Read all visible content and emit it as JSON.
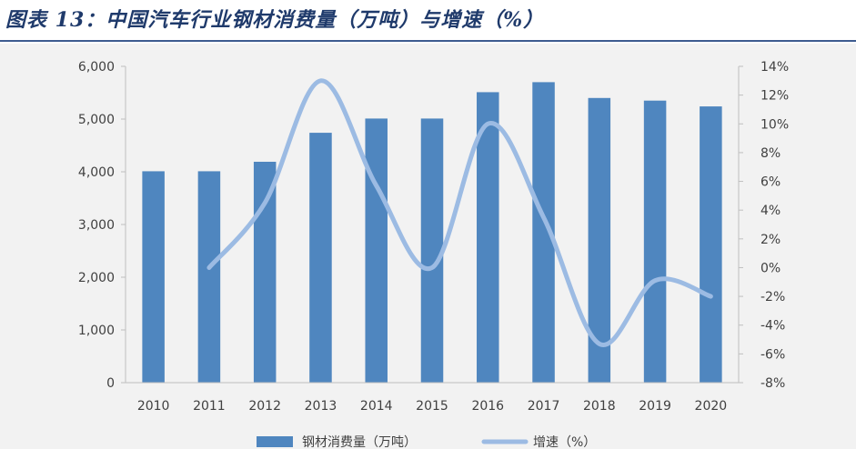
{
  "title": "图表 13：中国汽车行业钢材消费量（万吨）与增速（%）",
  "chart_data": {
    "type": "bar",
    "categories": [
      "2010",
      "2011",
      "2012",
      "2013",
      "2014",
      "2015",
      "2016",
      "2017",
      "2018",
      "2019",
      "2020"
    ],
    "series": [
      {
        "name": "钢材消费量（万吨）",
        "type": "bar",
        "axis": "left",
        "color": "#4f86bf",
        "values": [
          4010,
          4010,
          4190,
          4740,
          5010,
          5010,
          5510,
          5700,
          5400,
          5350,
          5240
        ]
      },
      {
        "name": "增速（%）",
        "type": "line",
        "axis": "right",
        "color": "#9cbbe3",
        "values": [
          null,
          0.0,
          4.5,
          13.0,
          5.7,
          0.0,
          10.0,
          3.5,
          -5.3,
          -0.9,
          -2.0
        ]
      }
    ],
    "y_left": {
      "min": 0,
      "max": 6000,
      "ticks": [
        "0",
        "1,000",
        "2,000",
        "3,000",
        "4,000",
        "5,000",
        "6,000"
      ]
    },
    "y_right": {
      "min": -8,
      "max": 14,
      "ticks": [
        "-8%",
        "-6%",
        "-4%",
        "-2%",
        "0%",
        "2%",
        "4%",
        "6%",
        "8%",
        "10%",
        "12%",
        "14%"
      ]
    },
    "legend": {
      "position": "bottom"
    },
    "grid": false
  }
}
